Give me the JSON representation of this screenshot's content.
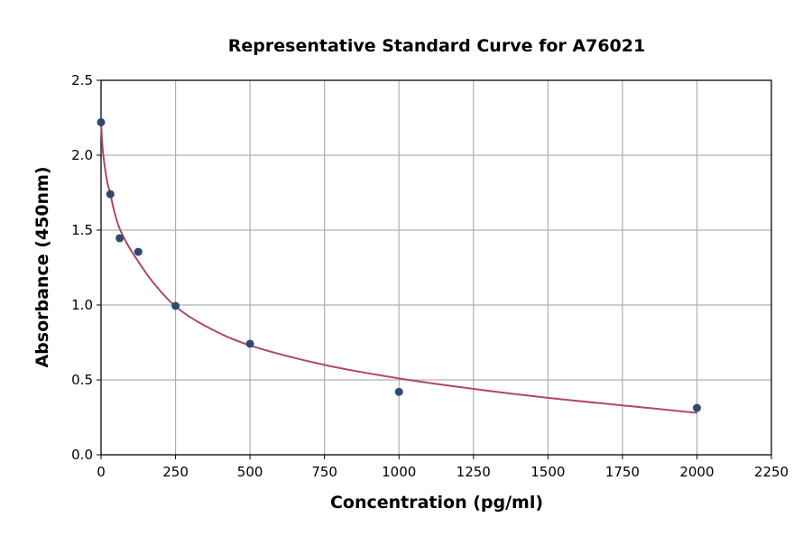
{
  "chart_data": {
    "type": "scatter",
    "title": "Representative Standard Curve for A76021",
    "xlabel": "Concentration (pg/ml)",
    "ylabel": "Absorbance (450nm)",
    "xlim": [
      0,
      2250
    ],
    "ylim": [
      0,
      2.5
    ],
    "xticks": [
      0,
      250,
      500,
      750,
      1000,
      1250,
      1500,
      1750,
      2000,
      2250
    ],
    "yticks": [
      "0.0",
      "0.5",
      "1.0",
      "1.5",
      "2.0",
      "2.5"
    ],
    "grid": true,
    "points": {
      "x": [
        0,
        31.25,
        62.5,
        125,
        250,
        500,
        1000,
        2000
      ],
      "y": [
        2.22,
        1.74,
        1.446,
        1.355,
        0.994,
        0.741,
        0.42,
        0.313
      ]
    },
    "fit_curve": {
      "x": [
        0,
        5,
        10,
        20,
        31.25,
        45,
        62.5,
        90,
        125,
        175,
        250,
        350,
        500,
        750,
        1000,
        1250,
        1500,
        1750,
        2000
      ],
      "y": [
        2.22,
        2.05,
        1.96,
        1.83,
        1.74,
        1.62,
        1.51,
        1.4,
        1.29,
        1.15,
        0.99,
        0.86,
        0.73,
        0.6,
        0.51,
        0.44,
        0.38,
        0.33,
        0.28
      ]
    },
    "colors": {
      "points": "#2e4a6e",
      "curve": "#b0476b",
      "grid": "#b0b0b0"
    }
  }
}
